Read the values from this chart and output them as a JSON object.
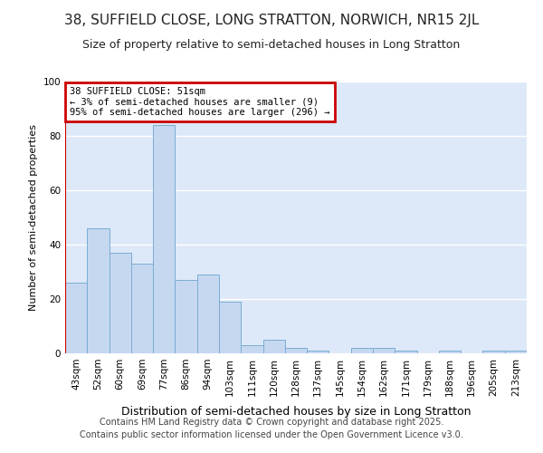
{
  "title1": "38, SUFFIELD CLOSE, LONG STRATTON, NORWICH, NR15 2JL",
  "title2": "Size of property relative to semi-detached houses in Long Stratton",
  "xlabel": "Distribution of semi-detached houses by size in Long Stratton",
  "ylabel": "Number of semi-detached properties",
  "categories": [
    "43sqm",
    "52sqm",
    "60sqm",
    "69sqm",
    "77sqm",
    "86sqm",
    "94sqm",
    "103sqm",
    "111sqm",
    "120sqm",
    "128sqm",
    "137sqm",
    "145sqm",
    "154sqm",
    "162sqm",
    "171sqm",
    "179sqm",
    "188sqm",
    "196sqm",
    "205sqm",
    "213sqm"
  ],
  "values": [
    26,
    46,
    37,
    33,
    84,
    27,
    29,
    19,
    3,
    5,
    2,
    1,
    0,
    2,
    2,
    1,
    0,
    1,
    0,
    1,
    1
  ],
  "bar_color": "#c5d8f0",
  "bar_edge_color": "#7aadd4",
  "background_color": "#dde8f8",
  "grid_color": "#ffffff",
  "red_line_x": -0.5,
  "annotation_title": "38 SUFFIELD CLOSE: 51sqm",
  "annotation_line1": "← 3% of semi-detached houses are smaller (9)",
  "annotation_line2": "95% of semi-detached houses are larger (296) →",
  "annotation_box_color": "#cc0000",
  "ylim": [
    0,
    100
  ],
  "yticks": [
    0,
    20,
    40,
    60,
    80,
    100
  ],
  "footer1": "Contains HM Land Registry data © Crown copyright and database right 2025.",
  "footer2": "Contains public sector information licensed under the Open Government Licence v3.0.",
  "fig_bg": "#ffffff",
  "title1_fontsize": 11,
  "title2_fontsize": 9,
  "xlabel_fontsize": 9,
  "ylabel_fontsize": 8,
  "tick_fontsize": 7.5,
  "footer_fontsize": 7
}
